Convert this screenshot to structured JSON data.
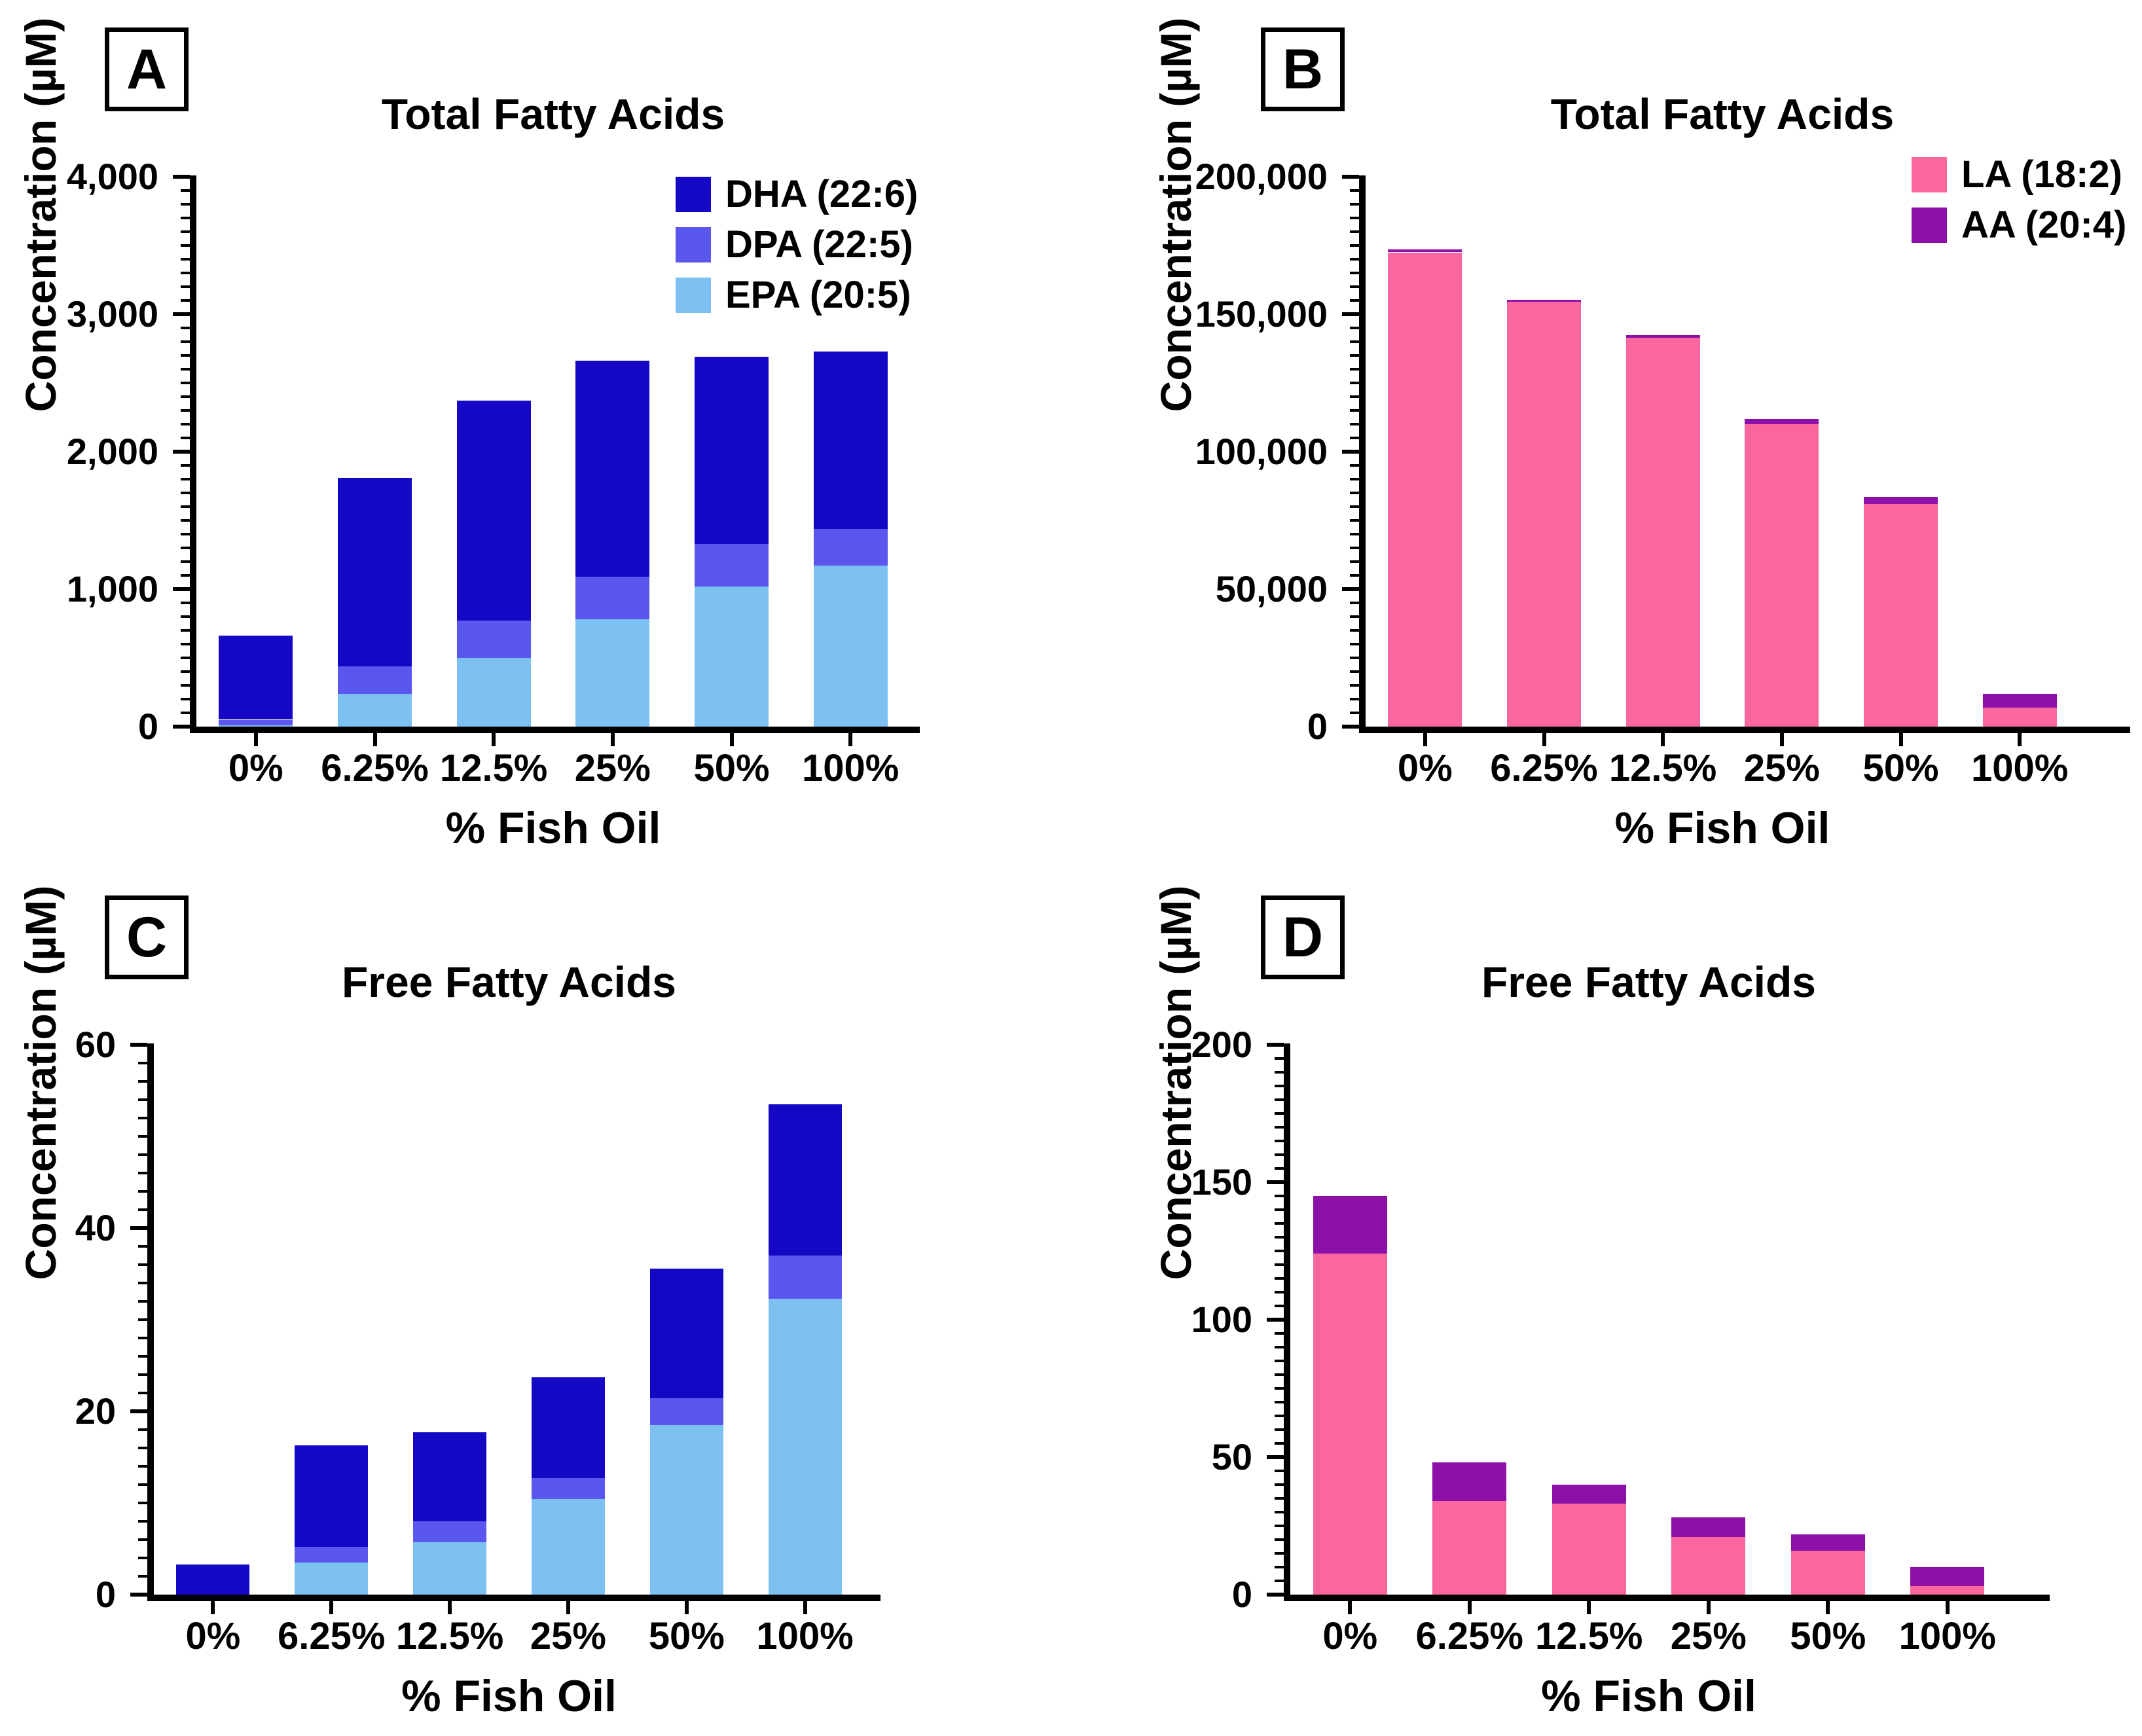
{
  "figure_title": "",
  "shared": {
    "xlabel": "% Fish Oil",
    "ylabel": "Concentration (µM)",
    "categories": [
      "0%",
      "6.25%",
      "12.5%",
      "25%",
      "50%",
      "100%"
    ]
  },
  "colors": {
    "dha": "#1508C4",
    "dpa": "#5A56EE",
    "epa": "#7DC1F2",
    "la": "#F9679E",
    "aa": "#8D10A8",
    "axis": "#000000",
    "background": "#FFFFFF"
  },
  "chart_data": [
    {
      "type": "bar",
      "stacked": true,
      "panel_letter": "A",
      "title": "Total Fatty Acids",
      "xlabel": "% Fish Oil",
      "ylabel": "Concentration (µM)",
      "categories": [
        "0%",
        "6.25%",
        "12.5%",
        "25%",
        "50%",
        "100%"
      ],
      "series": [
        {
          "name": "EPA (20:5)",
          "color": "#7DC1F2",
          "values": [
            10,
            240,
            500,
            780,
            1020,
            1170
          ]
        },
        {
          "name": "DPA (22:5)",
          "color": "#5A56EE",
          "values": [
            40,
            200,
            270,
            310,
            310,
            270
          ]
        },
        {
          "name": "DHA (22:6)",
          "color": "#1508C4",
          "values": [
            610,
            1370,
            1600,
            1570,
            1360,
            1290
          ]
        }
      ],
      "stack_totals": [
        660,
        1810,
        2370,
        2660,
        2690,
        2730
      ],
      "ylim": [
        0,
        4000
      ],
      "ytick_values": [
        0,
        1000,
        2000,
        3000,
        4000
      ],
      "ytick_labels": [
        "0",
        "1,000",
        "2,000",
        "3,000",
        "4,000"
      ],
      "minor_tick_step": 100,
      "grid": false,
      "legend": {
        "position": "top-right",
        "items": [
          "DHA (22:6)",
          "DPA (22:5)",
          "EPA (20:5)"
        ]
      }
    },
    {
      "type": "bar",
      "stacked": true,
      "panel_letter": "B",
      "title": "Total Fatty Acids",
      "xlabel": "% Fish Oil",
      "ylabel": "Concentration (µM)",
      "categories": [
        "0%",
        "6.25%",
        "12.5%",
        "25%",
        "50%",
        "100%"
      ],
      "series": [
        {
          "name": "LA (18:2)",
          "color": "#F9679E",
          "values": [
            172500,
            154500,
            141500,
            110000,
            81000,
            7000
          ]
        },
        {
          "name": "AA (20:4)",
          "color": "#8D10A8",
          "values": [
            1000,
            800,
            800,
            2000,
            2500,
            5000
          ]
        }
      ],
      "stack_totals": [
        173500,
        155300,
        142300,
        112000,
        83500,
        12000
      ],
      "ylim": [
        0,
        200000
      ],
      "ytick_values": [
        0,
        50000,
        100000,
        150000,
        200000
      ],
      "ytick_labels": [
        "0",
        "50,000",
        "100,000",
        "150,000",
        "200,000"
      ],
      "minor_tick_step": 5000,
      "grid": false,
      "legend": {
        "position": "top-right",
        "items": [
          "LA (18:2)",
          "AA (20:4)"
        ]
      }
    },
    {
      "type": "bar",
      "stacked": true,
      "panel_letter": "C",
      "title": "Free Fatty Acids",
      "xlabel": "% Fish Oil",
      "ylabel": "Concentration (µM)",
      "categories": [
        "0%",
        "6.25%",
        "12.5%",
        "25%",
        "50%",
        "100%"
      ],
      "series": [
        {
          "name": "EPA (20:5)",
          "color": "#7DC1F2",
          "values": [
            0,
            3.5,
            5.7,
            10.4,
            18.5,
            32.3
          ]
        },
        {
          "name": "DPA (22:5)",
          "color": "#5A56EE",
          "values": [
            0,
            1.7,
            2.3,
            2.3,
            2.9,
            4.7
          ]
        },
        {
          "name": "DHA (22:6)",
          "color": "#1508C4",
          "values": [
            3.3,
            11.1,
            9.7,
            11.0,
            14.2,
            16.5
          ]
        }
      ],
      "stack_totals": [
        3.3,
        16.3,
        17.7,
        23.7,
        35.6,
        53.5
      ],
      "ylim": [
        0,
        60
      ],
      "ytick_values": [
        0,
        20,
        40,
        60
      ],
      "ytick_labels": [
        "0",
        "20",
        "40",
        "60"
      ],
      "minor_tick_step": 2,
      "grid": false,
      "legend": null
    },
    {
      "type": "bar",
      "stacked": true,
      "panel_letter": "D",
      "title": "Free Fatty Acids",
      "xlabel": "% Fish Oil",
      "ylabel": "Concentration (µM)",
      "categories": [
        "0%",
        "6.25%",
        "12.5%",
        "25%",
        "50%",
        "100%"
      ],
      "series": [
        {
          "name": "LA (18:2)",
          "color": "#F9679E",
          "values": [
            124,
            34,
            33,
            21,
            16,
            3
          ]
        },
        {
          "name": "AA (20:4)",
          "color": "#8D10A8",
          "values": [
            21,
            14,
            7,
            7,
            6,
            7
          ]
        }
      ],
      "stack_totals": [
        145,
        48,
        40,
        28,
        22,
        10
      ],
      "ylim": [
        0,
        200
      ],
      "ytick_values": [
        0,
        50,
        100,
        150,
        200
      ],
      "ytick_labels": [
        "0",
        "50",
        "100",
        "150",
        "200"
      ],
      "minor_tick_step": 5,
      "grid": false,
      "legend": null
    }
  ]
}
